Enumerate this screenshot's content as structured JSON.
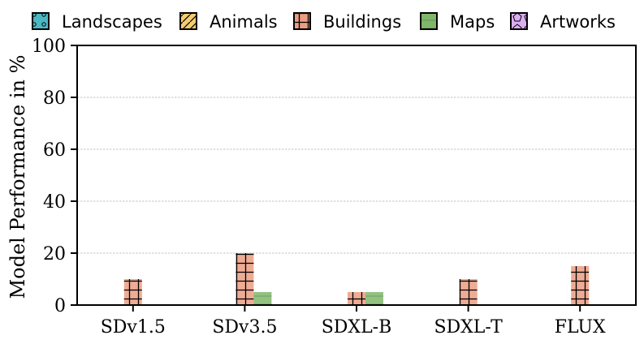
{
  "chart_data": {
    "type": "bar",
    "categories": [
      "SDv1.5",
      "SDv3.5",
      "SDXL-B",
      "SDXL-T",
      "FLUX"
    ],
    "series": [
      {
        "name": "Landscapes",
        "values": [
          0,
          0,
          0,
          0,
          0
        ],
        "color": "#4cb8c4",
        "hatch": "circle"
      },
      {
        "name": "Animals",
        "values": [
          0,
          0,
          0,
          0,
          0
        ],
        "color": "#f5cc70",
        "hatch": "diagonal"
      },
      {
        "name": "Buildings",
        "values": [
          10,
          20,
          5,
          10,
          15
        ],
        "color": "#eb9e83",
        "hatch": "grid"
      },
      {
        "name": "Maps",
        "values": [
          0,
          5,
          5,
          0,
          0
        ],
        "color": "#7fb76a",
        "hatch": "horizontal"
      },
      {
        "name": "Artworks",
        "values": [
          0,
          0,
          0,
          0,
          0
        ],
        "color": "#dcaef0",
        "hatch": "pentagon"
      }
    ],
    "ylabel": "Model Performance in %",
    "xlabel": "",
    "ylim": [
      0,
      100
    ],
    "yticks": [
      "0",
      "20",
      "40",
      "60",
      "80",
      "100"
    ],
    "grid": true,
    "legend_position": "top"
  }
}
